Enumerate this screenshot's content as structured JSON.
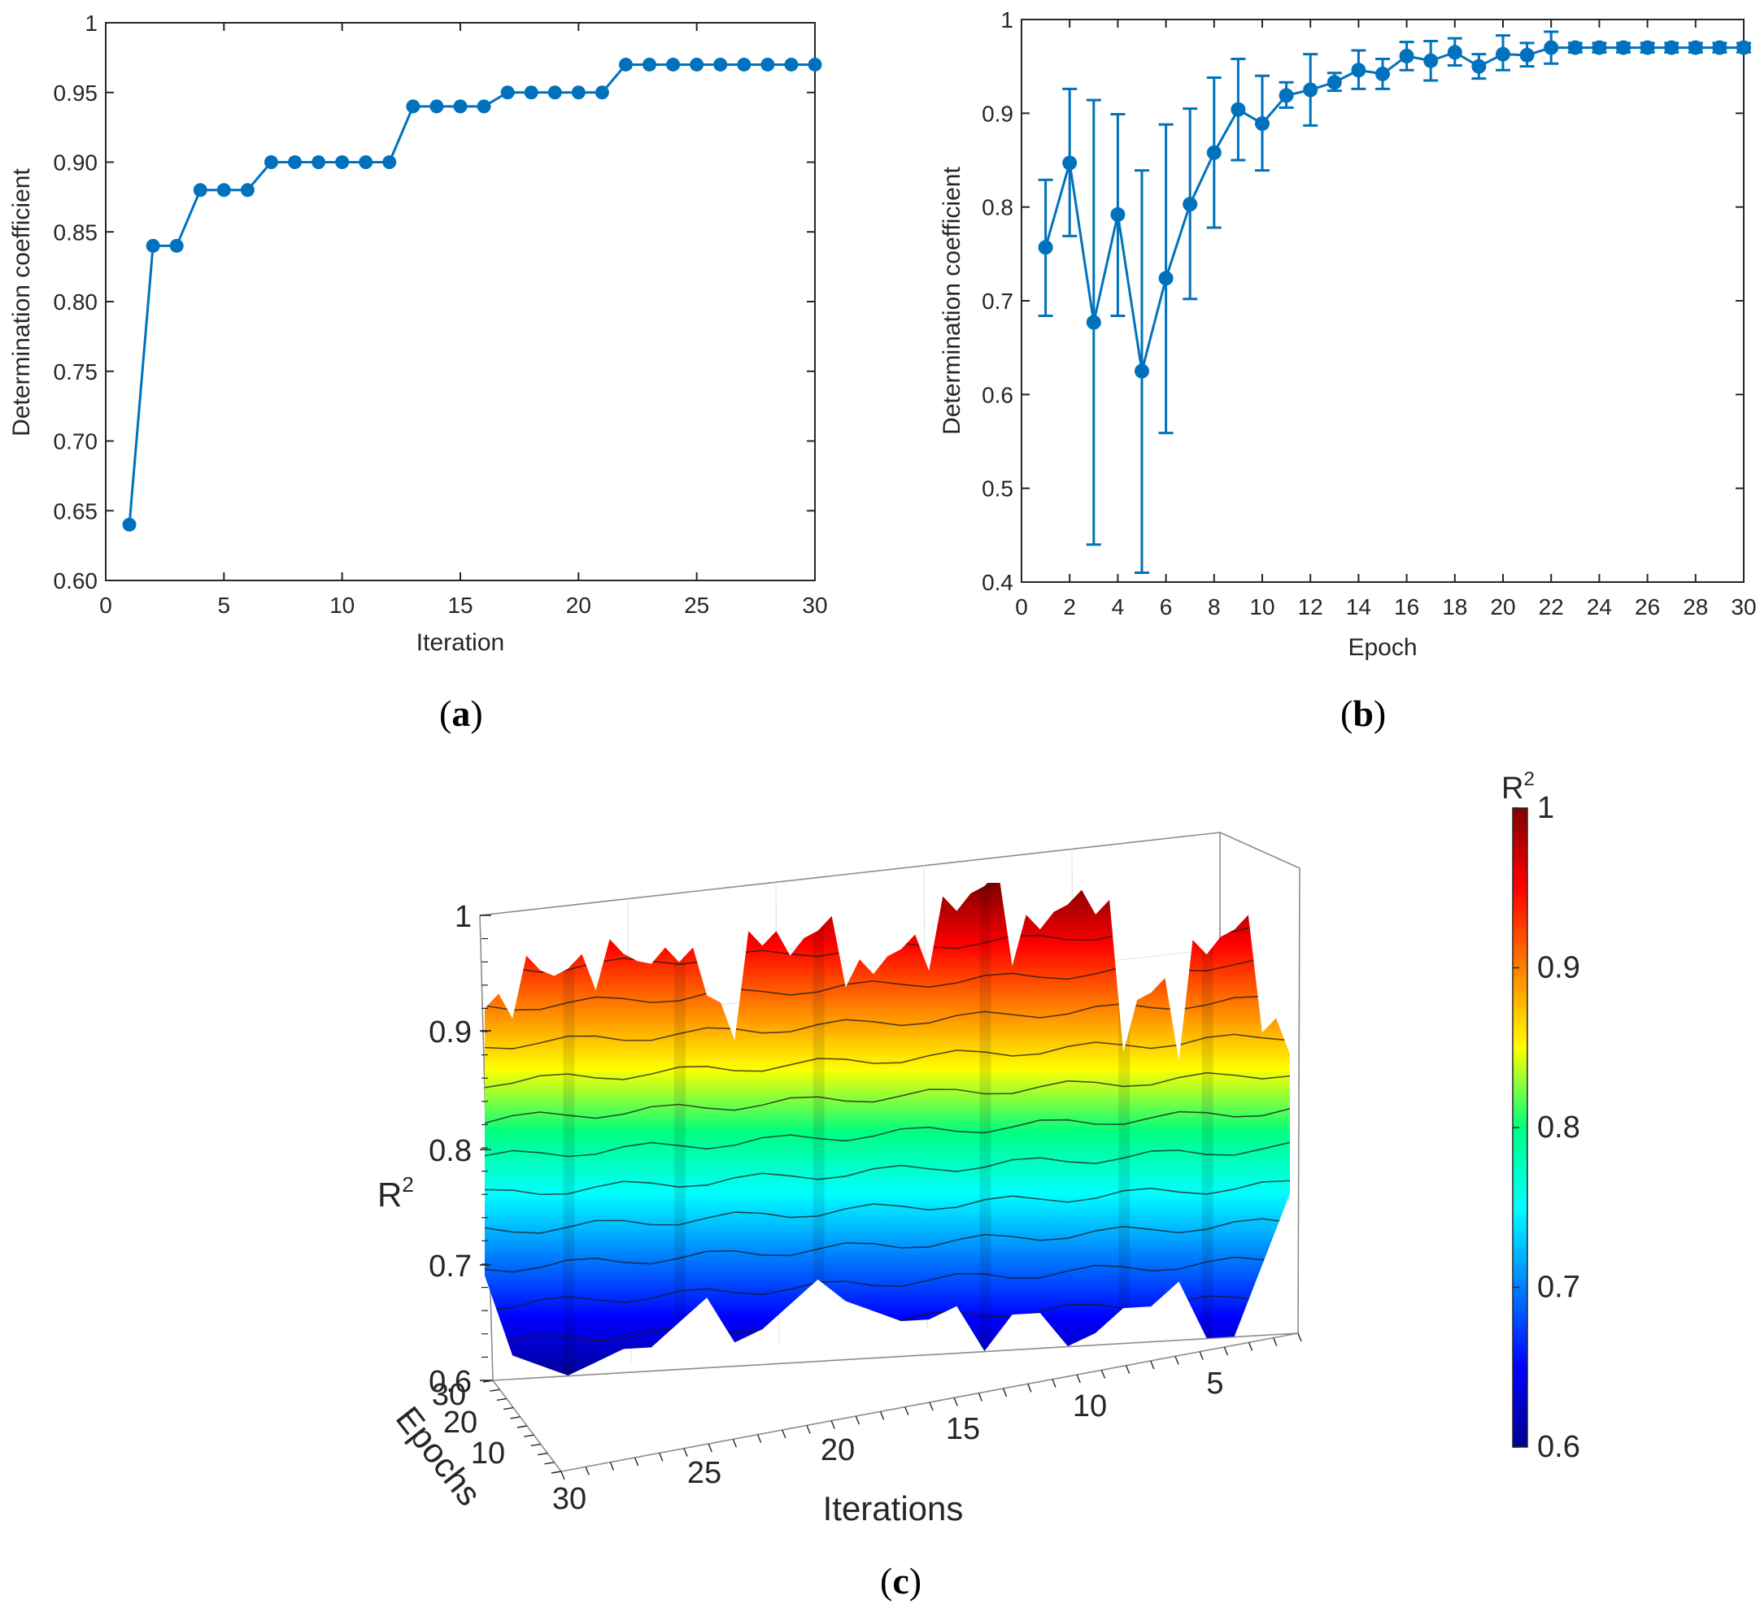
{
  "accent_color": "#0072BD",
  "chart_data": [
    {
      "panel": "a",
      "type": "line",
      "xlabel": "Iteration",
      "ylabel": "Determination coefficient",
      "xlim": [
        0,
        30
      ],
      "ylim": [
        0.6,
        1.0
      ],
      "xticks": [
        "0",
        "5",
        "10",
        "15",
        "20",
        "25",
        "30"
      ],
      "yticks": [
        "0.60",
        "0.65",
        "0.70",
        "0.75",
        "0.80",
        "0.85",
        "0.90",
        "0.95",
        "1"
      ],
      "x": [
        1,
        2,
        3,
        4,
        5,
        6,
        7,
        8,
        9,
        10,
        11,
        12,
        13,
        14,
        15,
        16,
        17,
        18,
        19,
        20,
        21,
        22,
        23,
        24,
        25,
        26,
        27,
        28,
        29,
        30
      ],
      "values": [
        0.64,
        0.84,
        0.84,
        0.88,
        0.88,
        0.88,
        0.9,
        0.9,
        0.9,
        0.9,
        0.9,
        0.9,
        0.94,
        0.94,
        0.94,
        0.94,
        0.95,
        0.95,
        0.95,
        0.95,
        0.95,
        0.97,
        0.97,
        0.97,
        0.97,
        0.97,
        0.97,
        0.97,
        0.97,
        0.97
      ],
      "caption_letter": "a"
    },
    {
      "panel": "b",
      "type": "line",
      "error_bars": true,
      "xlabel": "Epoch",
      "ylabel": "Determination coefficient",
      "xlim": [
        0,
        30
      ],
      "ylim": [
        0.4,
        1.0
      ],
      "xticks": [
        "0",
        "2",
        "4",
        "6",
        "8",
        "10",
        "12",
        "14",
        "16",
        "18",
        "20",
        "22",
        "24",
        "26",
        "28",
        "30"
      ],
      "yticks": [
        "0.4",
        "0.5",
        "0.6",
        "0.7",
        "0.8",
        "0.9",
        "1"
      ],
      "x": [
        1,
        2,
        3,
        4,
        5,
        6,
        7,
        8,
        9,
        10,
        11,
        12,
        13,
        14,
        15,
        16,
        17,
        18,
        19,
        20,
        21,
        22,
        23,
        24,
        25,
        26,
        27,
        28,
        29,
        30
      ],
      "values": [
        0.757,
        0.847,
        0.677,
        0.792,
        0.625,
        0.724,
        0.803,
        0.858,
        0.904,
        0.889,
        0.919,
        0.925,
        0.933,
        0.946,
        0.942,
        0.961,
        0.956,
        0.965,
        0.95,
        0.963,
        0.962,
        0.97,
        0.97,
        0.97,
        0.97,
        0.97,
        0.97,
        0.97,
        0.97,
        0.97
      ],
      "err_low": [
        0.684,
        0.769,
        0.44,
        0.684,
        0.41,
        0.559,
        0.702,
        0.778,
        0.85,
        0.839,
        0.906,
        0.887,
        0.924,
        0.926,
        0.926,
        0.946,
        0.935,
        0.951,
        0.937,
        0.946,
        0.95,
        0.953,
        0.965,
        0.965,
        0.965,
        0.965,
        0.965,
        0.965,
        0.965,
        0.965
      ],
      "err_high": [
        0.829,
        0.926,
        0.914,
        0.899,
        0.839,
        0.888,
        0.905,
        0.938,
        0.958,
        0.94,
        0.933,
        0.963,
        0.943,
        0.967,
        0.958,
        0.976,
        0.977,
        0.98,
        0.963,
        0.983,
        0.975,
        0.987,
        0.975,
        0.975,
        0.975,
        0.975,
        0.975,
        0.975,
        0.975,
        0.975
      ],
      "caption_letter": "b"
    },
    {
      "panel": "c",
      "type": "surface",
      "xlabel": "Iterations",
      "ylabel": "Epochs",
      "zlabel_base": "R",
      "zlabel_sup": "2",
      "zlim": [
        0.6,
        1.0
      ],
      "zticks": [
        "0.6",
        "0.7",
        "0.8",
        "0.9",
        "1"
      ],
      "iteration_ticks": [
        "5",
        "10",
        "15",
        "20",
        "25",
        "30"
      ],
      "epoch_ticks": [
        "10",
        "20",
        "30"
      ],
      "colorbar": {
        "title_base": "R",
        "title_sup": "2",
        "range": [
          0.6,
          1.0
        ],
        "ticks": [
          "0.6",
          "0.7",
          "0.8",
          "0.9",
          "1"
        ],
        "colormap": "jet"
      },
      "surface_top_by_iteration": [
        0.84,
        0.86,
        0.95,
        0.93,
        0.84,
        0.9,
        0.85,
        0.97,
        0.98,
        0.96,
        0.93,
        1.0,
        0.98,
        0.93,
        0.95,
        0.93,
        0.92,
        0.97,
        0.95,
        0.96,
        0.88,
        0.92,
        0.95,
        0.95,
        0.96,
        0.93,
        0.95,
        0.95,
        0.91,
        0.92
      ],
      "surface_bottom_by_iteration": [
        0.72,
        0.66,
        0.6,
        0.6,
        0.65,
        0.63,
        0.63,
        0.61,
        0.6,
        0.63,
        0.63,
        0.6,
        0.64,
        0.63,
        0.63,
        0.64,
        0.65,
        0.67,
        0.65,
        0.63,
        0.62,
        0.66,
        0.64,
        0.62,
        0.62,
        0.61,
        0.6,
        0.61,
        0.62,
        0.69
      ],
      "caption_letter": "c"
    }
  ]
}
